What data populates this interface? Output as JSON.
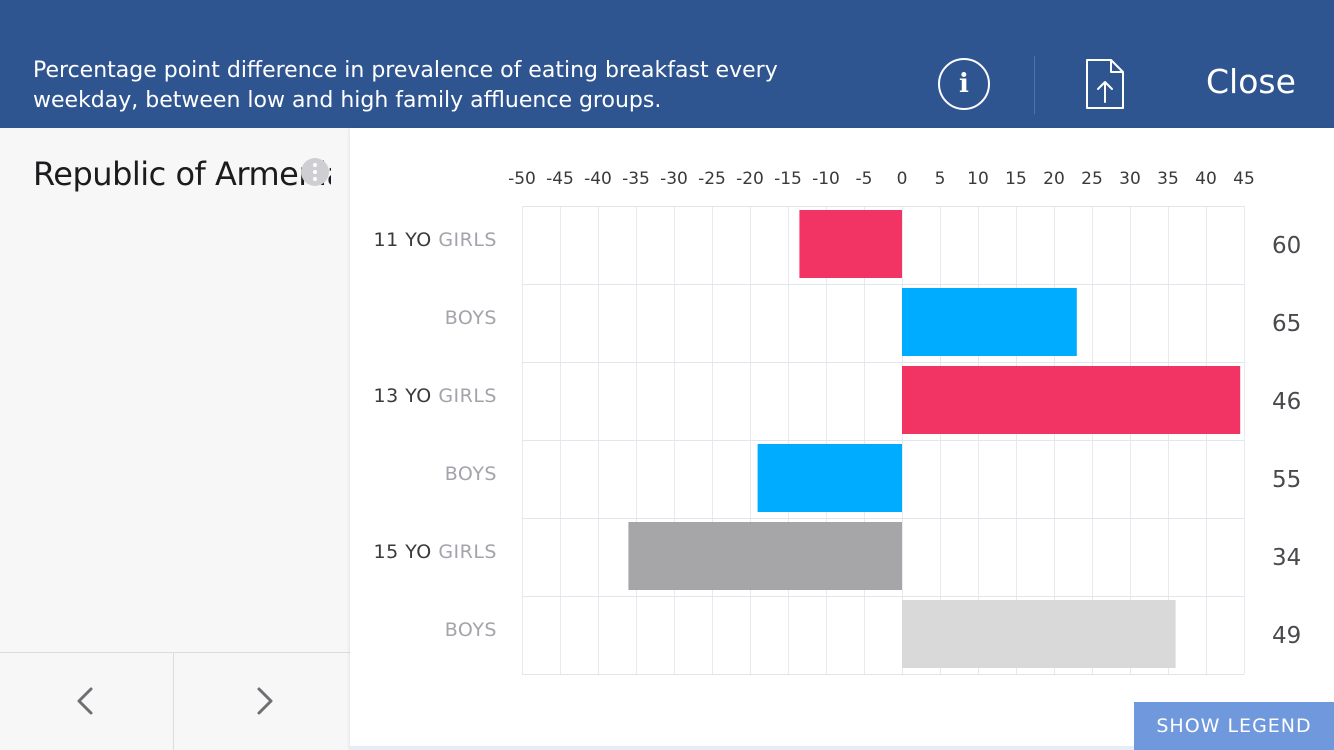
{
  "header": {
    "title": "Percentage point difference in prevalence of eating breakfast every weekday, between low and high family affluence groups.",
    "info_icon": "info-icon",
    "share_icon": "share-icon",
    "close_label": "Close"
  },
  "sidebar": {
    "country": "Republic of Armenia",
    "more_icon": "more-options-icon",
    "prev_icon": "chevron-left-icon",
    "next_icon": "chevron-right-icon"
  },
  "legend_button": "SHOW LEGEND",
  "colors": {
    "header_bg": "#2f5591",
    "girls_11": "#f23465",
    "boys_11": "#00acff",
    "girls_13": "#f23465",
    "boys_13": "#00acff",
    "girls_15": "#a6a6a8",
    "boys_15": "#d9d9d9",
    "legend_button_bg": "#6f98dd"
  },
  "chart_data": {
    "type": "bar",
    "orientation": "horizontal",
    "x_ticks": [
      "-50",
      "-45",
      "-40",
      "-35",
      "-30",
      "-25",
      "-20",
      "-15",
      "-10",
      "-5",
      "0",
      "5",
      "10",
      "15",
      "20",
      "25",
      "30",
      "35",
      "40",
      "45"
    ],
    "xlim": [
      -50,
      45
    ],
    "grid": true,
    "rows": [
      {
        "age": "11 YO",
        "gender": "GIRLS",
        "value": -13.5,
        "right_label": "60",
        "color": "#f23465"
      },
      {
        "age": "",
        "gender": "BOYS",
        "value": 23,
        "right_label": "65",
        "color": "#00acff"
      },
      {
        "age": "13 YO",
        "gender": "GIRLS",
        "value": 44.5,
        "right_label": "46",
        "color": "#f23465"
      },
      {
        "age": "",
        "gender": "BOYS",
        "value": -19,
        "right_label": "55",
        "color": "#00acff"
      },
      {
        "age": "15 YO",
        "gender": "GIRLS",
        "value": -36,
        "right_label": "34",
        "color": "#a6a6a8"
      },
      {
        "age": "",
        "gender": "BOYS",
        "value": 36,
        "right_label": "49",
        "color": "#d9d9d9"
      }
    ]
  }
}
